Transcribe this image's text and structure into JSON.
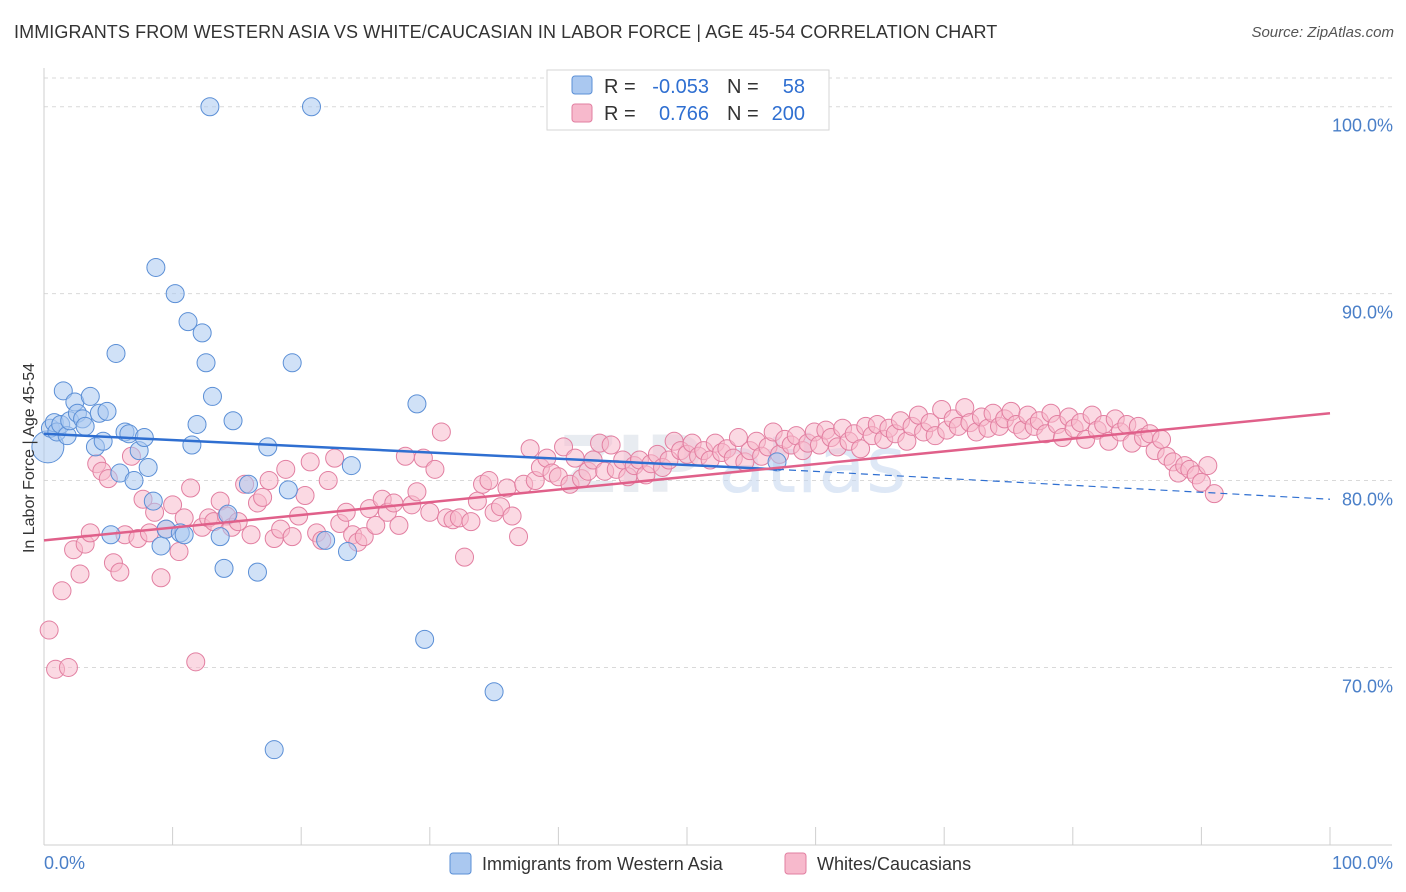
{
  "title": "IMMIGRANTS FROM WESTERN ASIA VS WHITE/CAUCASIAN IN LABOR FORCE | AGE 45-54 CORRELATION CHART",
  "source": "Source: ZipAtlas.com",
  "watermark": {
    "zip": "ZIP",
    "atlas": "atlas"
  },
  "colors": {
    "blue_fill": "#aac8f0",
    "blue_stroke": "#5b8fd6",
    "blue_line": "#2f6fd1",
    "pink_fill": "#f7b9cc",
    "pink_stroke": "#e27fa1",
    "pink_line": "#e0608a",
    "grid": "#d9d9d9",
    "tick_text": "#4a7fc8"
  },
  "legend": {
    "rows": [
      {
        "r_label": "R =",
        "r_value": "-0.053",
        "n_label": "N =",
        "n_value": "58"
      },
      {
        "r_label": "R =",
        "r_value": "0.766",
        "n_label": "N =",
        "n_value": "200"
      }
    ]
  },
  "chart_data": {
    "type": "scatter",
    "title": "IMMIGRANTS FROM WESTERN ASIA VS WHITE/CAUCASIAN IN LABOR FORCE | AGE 45-54 CORRELATION CHART",
    "xlabel": "",
    "ylabel": "In Labor Force | Age 45-54",
    "xlim": [
      0,
      100
    ],
    "ylim": [
      60.5,
      102.5
    ],
    "x_tick_labels": [
      "0.0%",
      "100.0%"
    ],
    "y_ticks": [
      {
        "value": 70,
        "label": "70.0%"
      },
      {
        "value": 80,
        "label": "80.0%"
      },
      {
        "value": 90,
        "label": "90.0%"
      },
      {
        "value": 100,
        "label": "100.0%"
      }
    ],
    "legend_position": "top-center",
    "grid": true,
    "series": [
      {
        "name": "Immigrants from Western Asia",
        "color": "#aac8f0",
        "trend": {
          "x0": 0,
          "y0": 82.5,
          "x1": 57,
          "y1": 80.6,
          "dashed_to_x": 100,
          "dashed_to_y": 79.0
        },
        "points": [
          [
            0.3,
            81.8
          ],
          [
            0.5,
            82.8
          ],
          [
            0.8,
            83.1
          ],
          [
            1.0,
            82.6
          ],
          [
            1.3,
            83.0
          ],
          [
            1.5,
            84.8
          ],
          [
            1.8,
            82.4
          ],
          [
            2.0,
            83.2
          ],
          [
            2.4,
            84.2
          ],
          [
            2.6,
            83.6
          ],
          [
            3.0,
            83.3
          ],
          [
            3.2,
            82.9
          ],
          [
            3.6,
            84.5
          ],
          [
            4.0,
            81.8
          ],
          [
            4.3,
            83.6
          ],
          [
            4.6,
            82.1
          ],
          [
            4.9,
            83.7
          ],
          [
            5.2,
            77.1
          ],
          [
            5.6,
            86.8
          ],
          [
            5.9,
            80.4
          ],
          [
            6.3,
            82.6
          ],
          [
            6.6,
            82.5
          ],
          [
            7.0,
            80.0
          ],
          [
            7.4,
            81.6
          ],
          [
            7.8,
            82.3
          ],
          [
            8.1,
            80.7
          ],
          [
            8.5,
            78.9
          ],
          [
            8.7,
            91.4
          ],
          [
            9.1,
            76.5
          ],
          [
            9.5,
            77.4
          ],
          [
            10.2,
            90.0
          ],
          [
            10.6,
            77.2
          ],
          [
            10.9,
            77.1
          ],
          [
            11.2,
            88.5
          ],
          [
            11.5,
            81.9
          ],
          [
            11.9,
            83.0
          ],
          [
            12.3,
            87.9
          ],
          [
            12.6,
            86.3
          ],
          [
            12.9,
            100.0
          ],
          [
            13.1,
            84.5
          ],
          [
            13.7,
            77.0
          ],
          [
            14.0,
            75.3
          ],
          [
            14.3,
            78.2
          ],
          [
            14.7,
            83.2
          ],
          [
            15.9,
            79.8
          ],
          [
            16.6,
            75.1
          ],
          [
            17.4,
            81.8
          ],
          [
            17.9,
            65.6
          ],
          [
            19.0,
            79.5
          ],
          [
            19.3,
            86.3
          ],
          [
            20.8,
            100.0
          ],
          [
            21.9,
            76.8
          ],
          [
            23.6,
            76.2
          ],
          [
            23.9,
            80.8
          ],
          [
            29.0,
            84.1
          ],
          [
            29.6,
            71.5
          ],
          [
            35.0,
            68.7
          ],
          [
            57.0,
            81.0
          ]
        ]
      },
      {
        "name": "Whites/Caucasians",
        "color": "#f7b9cc",
        "trend": {
          "x0": 0,
          "y0": 76.8,
          "x1": 100,
          "y1": 83.6
        },
        "points": [
          [
            0.4,
            72.0
          ],
          [
            0.9,
            69.9
          ],
          [
            1.4,
            74.1
          ],
          [
            1.9,
            70.0
          ],
          [
            2.3,
            76.3
          ],
          [
            2.8,
            75.0
          ],
          [
            3.2,
            76.6
          ],
          [
            3.6,
            77.2
          ],
          [
            4.1,
            80.9
          ],
          [
            4.5,
            80.5
          ],
          [
            5.0,
            80.1
          ],
          [
            5.4,
            75.6
          ],
          [
            5.9,
            75.1
          ],
          [
            6.3,
            77.1
          ],
          [
            6.8,
            81.3
          ],
          [
            7.3,
            76.9
          ],
          [
            7.7,
            79.0
          ],
          [
            8.2,
            77.2
          ],
          [
            8.6,
            78.3
          ],
          [
            9.1,
            74.8
          ],
          [
            9.5,
            77.4
          ],
          [
            10.0,
            78.7
          ],
          [
            10.5,
            76.2
          ],
          [
            10.9,
            78.0
          ],
          [
            11.4,
            79.6
          ],
          [
            11.8,
            70.3
          ],
          [
            12.3,
            77.5
          ],
          [
            12.8,
            78.0
          ],
          [
            13.2,
            77.8
          ],
          [
            13.7,
            78.9
          ],
          [
            14.2,
            78.1
          ],
          [
            14.6,
            77.5
          ],
          [
            15.1,
            77.8
          ],
          [
            15.6,
            79.8
          ],
          [
            16.1,
            77.1
          ],
          [
            16.6,
            78.8
          ],
          [
            17.0,
            79.1
          ],
          [
            17.5,
            80.0
          ],
          [
            17.9,
            76.9
          ],
          [
            18.4,
            77.4
          ],
          [
            18.8,
            80.6
          ],
          [
            19.3,
            77.0
          ],
          [
            19.8,
            78.1
          ],
          [
            20.3,
            79.2
          ],
          [
            20.7,
            81.0
          ],
          [
            21.2,
            77.2
          ],
          [
            21.6,
            76.8
          ],
          [
            22.1,
            80.0
          ],
          [
            22.6,
            81.2
          ],
          [
            23.0,
            77.7
          ],
          [
            23.5,
            78.3
          ],
          [
            24.0,
            77.1
          ],
          [
            24.4,
            76.7
          ],
          [
            24.9,
            77.0
          ],
          [
            25.3,
            78.5
          ],
          [
            25.8,
            77.6
          ],
          [
            26.3,
            79.0
          ],
          [
            26.7,
            78.3
          ],
          [
            27.2,
            78.8
          ],
          [
            27.6,
            77.6
          ],
          [
            28.1,
            81.3
          ],
          [
            28.6,
            78.7
          ],
          [
            29.0,
            79.4
          ],
          [
            29.5,
            81.2
          ],
          [
            30.0,
            78.3
          ],
          [
            30.4,
            80.6
          ],
          [
            30.9,
            82.6
          ],
          [
            31.3,
            78.0
          ],
          [
            31.8,
            77.9
          ],
          [
            32.3,
            78.0
          ],
          [
            32.7,
            75.9
          ],
          [
            33.2,
            77.8
          ],
          [
            33.7,
            78.9
          ],
          [
            34.1,
            79.8
          ],
          [
            34.6,
            80.0
          ],
          [
            35.0,
            78.3
          ],
          [
            35.5,
            78.6
          ],
          [
            36.0,
            79.6
          ],
          [
            36.4,
            78.1
          ],
          [
            36.9,
            77.0
          ],
          [
            37.3,
            79.8
          ],
          [
            37.8,
            81.7
          ],
          [
            38.2,
            80.0
          ],
          [
            38.6,
            80.7
          ],
          [
            39.1,
            81.2
          ],
          [
            39.5,
            80.4
          ],
          [
            40.0,
            80.2
          ],
          [
            40.4,
            81.8
          ],
          [
            40.9,
            79.8
          ],
          [
            41.3,
            81.2
          ],
          [
            41.8,
            80.1
          ],
          [
            42.3,
            80.5
          ],
          [
            42.7,
            81.1
          ],
          [
            43.2,
            82.0
          ],
          [
            43.6,
            80.5
          ],
          [
            44.1,
            81.9
          ],
          [
            44.5,
            80.6
          ],
          [
            45.0,
            81.1
          ],
          [
            45.4,
            80.2
          ],
          [
            45.9,
            80.8
          ],
          [
            46.3,
            81.1
          ],
          [
            46.8,
            80.3
          ],
          [
            47.2,
            80.9
          ],
          [
            47.7,
            81.4
          ],
          [
            48.1,
            80.7
          ],
          [
            48.6,
            81.1
          ],
          [
            49.0,
            82.1
          ],
          [
            49.5,
            81.6
          ],
          [
            50.0,
            81.4
          ],
          [
            50.4,
            82.0
          ],
          [
            50.9,
            81.3
          ],
          [
            51.3,
            81.6
          ],
          [
            51.8,
            81.1
          ],
          [
            52.2,
            82.0
          ],
          [
            52.7,
            81.5
          ],
          [
            53.1,
            81.7
          ],
          [
            53.6,
            81.2
          ],
          [
            54.0,
            82.3
          ],
          [
            54.5,
            81.0
          ],
          [
            54.9,
            81.6
          ],
          [
            55.4,
            82.1
          ],
          [
            55.8,
            81.3
          ],
          [
            56.3,
            81.8
          ],
          [
            56.7,
            82.6
          ],
          [
            57.2,
            81.4
          ],
          [
            57.6,
            82.2
          ],
          [
            58.1,
            81.9
          ],
          [
            58.5,
            82.4
          ],
          [
            59.0,
            81.6
          ],
          [
            59.4,
            82.0
          ],
          [
            59.9,
            82.6
          ],
          [
            60.3,
            81.9
          ],
          [
            60.8,
            82.7
          ],
          [
            61.2,
            82.3
          ],
          [
            61.7,
            81.8
          ],
          [
            62.1,
            82.8
          ],
          [
            62.6,
            82.1
          ],
          [
            63.0,
            82.5
          ],
          [
            63.5,
            81.7
          ],
          [
            63.9,
            82.9
          ],
          [
            64.4,
            82.4
          ],
          [
            64.8,
            83.0
          ],
          [
            65.3,
            82.2
          ],
          [
            65.7,
            82.8
          ],
          [
            66.2,
            82.5
          ],
          [
            66.6,
            83.2
          ],
          [
            67.1,
            82.1
          ],
          [
            67.5,
            82.9
          ],
          [
            68.0,
            83.5
          ],
          [
            68.4,
            82.6
          ],
          [
            68.9,
            83.1
          ],
          [
            69.3,
            82.4
          ],
          [
            69.8,
            83.8
          ],
          [
            70.2,
            82.7
          ],
          [
            70.7,
            83.3
          ],
          [
            71.1,
            82.9
          ],
          [
            71.6,
            83.9
          ],
          [
            72.0,
            83.1
          ],
          [
            72.5,
            82.6
          ],
          [
            72.9,
            83.4
          ],
          [
            73.4,
            82.8
          ],
          [
            73.8,
            83.6
          ],
          [
            74.3,
            82.9
          ],
          [
            74.7,
            83.3
          ],
          [
            75.2,
            83.7
          ],
          [
            75.6,
            83.0
          ],
          [
            76.1,
            82.7
          ],
          [
            76.5,
            83.5
          ],
          [
            77.0,
            82.9
          ],
          [
            77.4,
            83.2
          ],
          [
            77.9,
            82.5
          ],
          [
            78.3,
            83.6
          ],
          [
            78.8,
            83.0
          ],
          [
            79.2,
            82.3
          ],
          [
            79.7,
            83.4
          ],
          [
            80.1,
            82.8
          ],
          [
            80.6,
            83.1
          ],
          [
            81.0,
            82.2
          ],
          [
            81.5,
            83.5
          ],
          [
            81.9,
            82.7
          ],
          [
            82.4,
            83.0
          ],
          [
            82.8,
            82.1
          ],
          [
            83.3,
            83.3
          ],
          [
            83.7,
            82.6
          ],
          [
            84.2,
            83.0
          ],
          [
            84.6,
            82.0
          ],
          [
            85.1,
            82.9
          ],
          [
            85.5,
            82.3
          ],
          [
            86.0,
            82.5
          ],
          [
            86.4,
            81.6
          ],
          [
            86.9,
            82.2
          ],
          [
            87.3,
            81.3
          ],
          [
            87.8,
            81.0
          ],
          [
            88.2,
            80.4
          ],
          [
            88.7,
            80.8
          ],
          [
            89.1,
            80.6
          ],
          [
            89.6,
            80.3
          ],
          [
            90.0,
            79.9
          ],
          [
            90.5,
            80.8
          ],
          [
            91.0,
            79.3
          ]
        ]
      }
    ]
  },
  "bottom_legend": [
    {
      "label": "Immigrants from Western Asia"
    },
    {
      "label": "Whites/Caucasians"
    }
  ]
}
